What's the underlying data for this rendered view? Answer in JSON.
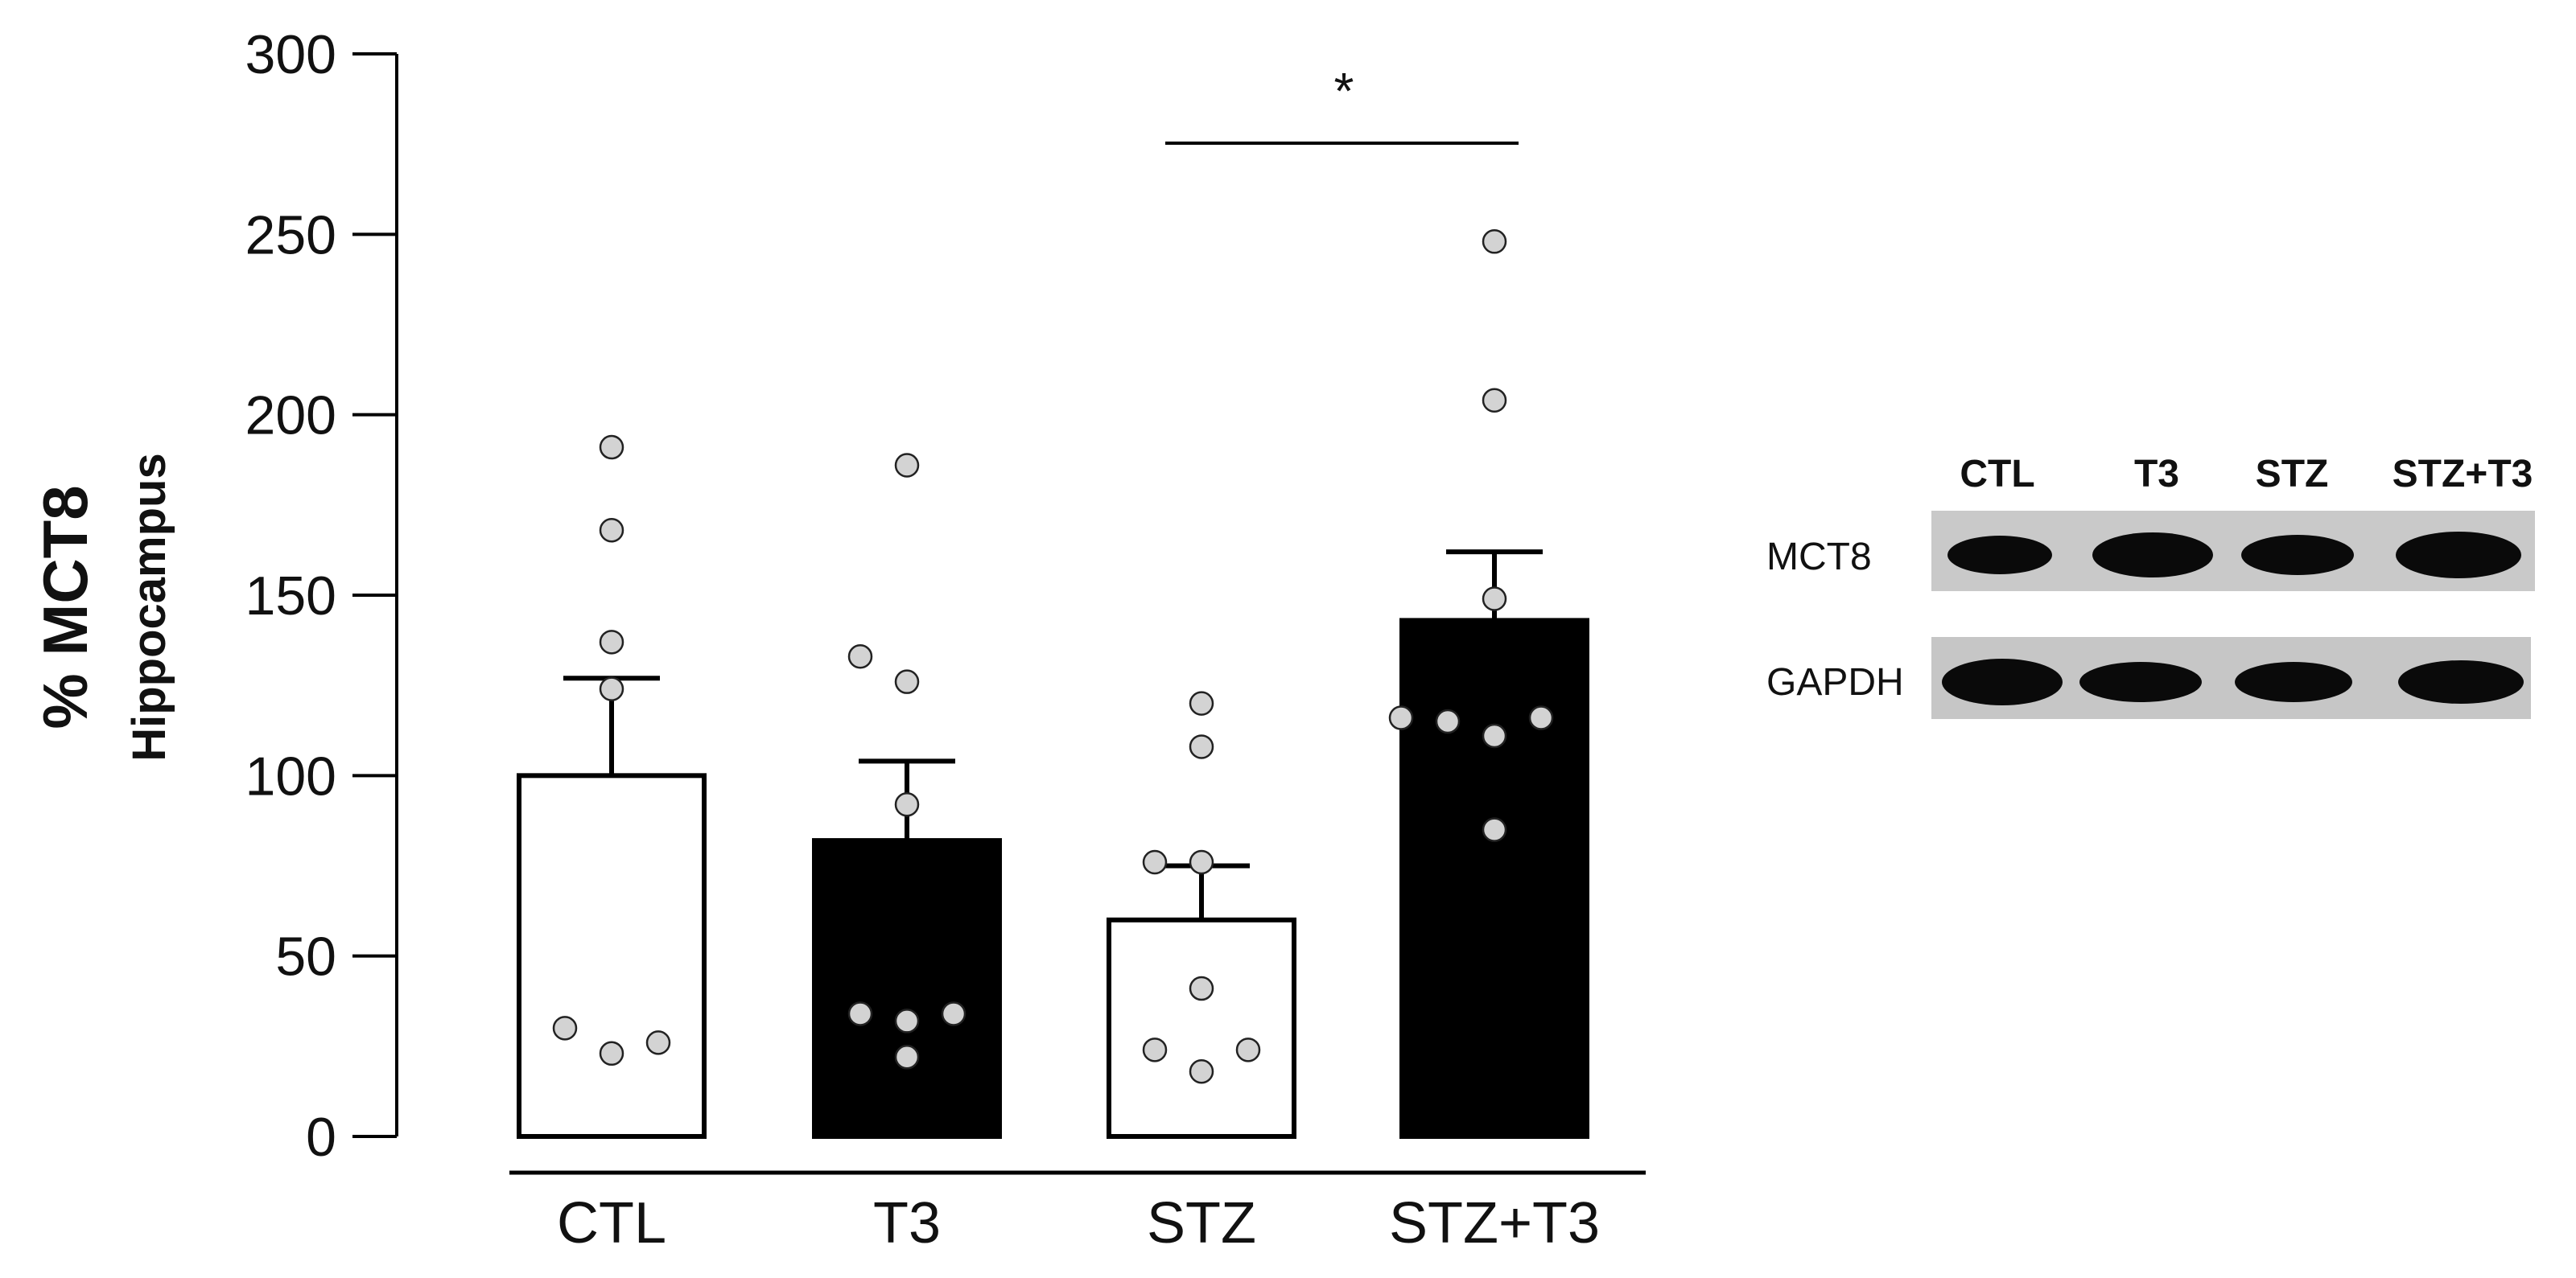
{
  "chart_data": {
    "type": "bar",
    "ylabel": "% MCT8",
    "ylabel_sub": "Hippocampus",
    "ylim": [
      0,
      300
    ],
    "yticks": [
      0,
      50,
      100,
      150,
      200,
      250,
      300
    ],
    "categories": [
      "CTL",
      "T3",
      "STZ",
      "STZ+T3"
    ],
    "bar_fills": [
      "white",
      "black",
      "white",
      "black"
    ],
    "values": [
      100,
      82,
      60,
      143
    ],
    "sem": [
      27,
      22,
      15,
      19
    ],
    "points": [
      [
        23,
        30,
        26,
        124,
        137,
        168,
        191
      ],
      [
        22,
        32,
        34,
        34,
        92,
        126,
        133,
        186
      ],
      [
        18,
        24,
        24,
        41,
        76,
        76,
        108,
        120
      ],
      [
        85,
        111,
        115,
        116,
        116,
        149,
        204,
        248
      ]
    ],
    "significance": {
      "from": "STZ",
      "to": "STZ+T3",
      "label": "*"
    },
    "grid": false,
    "legend": "none"
  },
  "blot": {
    "columns": [
      "CTL",
      "T3",
      "STZ",
      "STZ+T3"
    ],
    "rows": [
      "MCT8",
      "GAPDH"
    ]
  },
  "colors": {
    "bar_black": "#000000",
    "bar_white": "#ffffff",
    "point_fill": "#d3d3d3",
    "axis": "#000000",
    "blot_bg": "#c9c9c9",
    "band": "#0a0a0a"
  }
}
